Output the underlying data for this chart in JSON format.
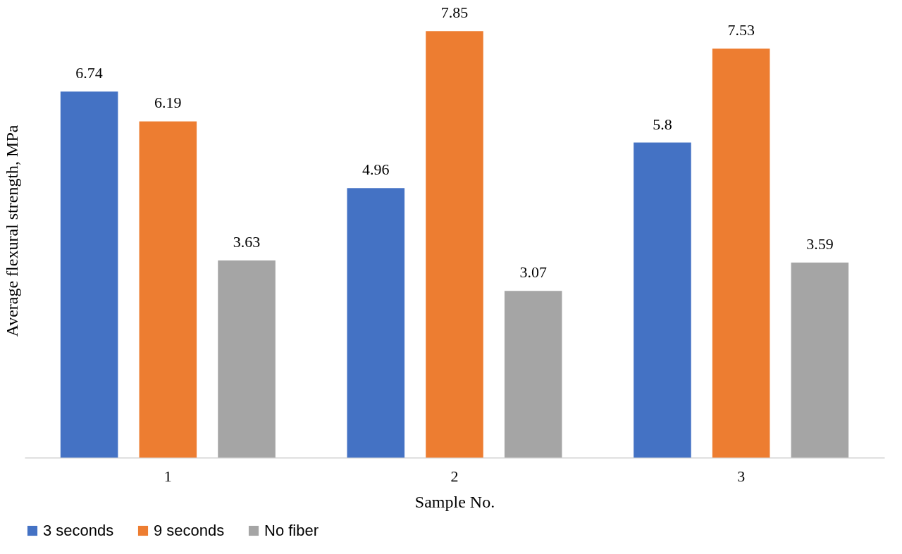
{
  "chart_data": {
    "type": "bar",
    "xlabel": "Sample No.",
    "ylabel": "Average flexural strength, MPa",
    "categories": [
      "1",
      "2",
      "3"
    ],
    "series": [
      {
        "name": "3 seconds",
        "color": "#4472c4",
        "values": [
          6.74,
          4.96,
          5.8
        ]
      },
      {
        "name": "9 seconds",
        "color": "#ed7d31",
        "values": [
          6.19,
          7.85,
          7.53
        ]
      },
      {
        "name": "No fiber",
        "color": "#a5a5a5",
        "values": [
          3.63,
          3.07,
          3.59
        ]
      }
    ],
    "data_labels": true,
    "legend": "bottom",
    "grid": false
  }
}
